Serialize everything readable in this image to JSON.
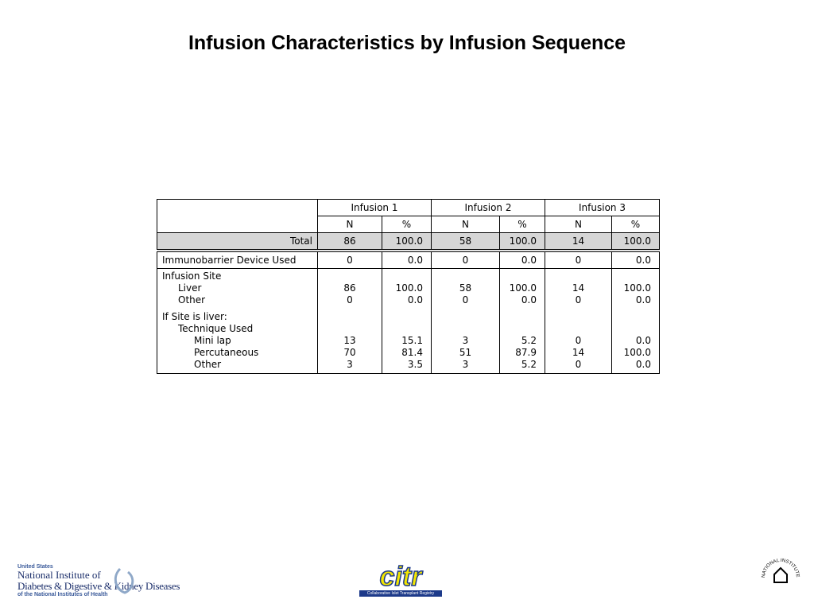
{
  "title": "Infusion Characteristics by Infusion Sequence",
  "table": {
    "groups": [
      "Infusion 1",
      "Infusion 2",
      "Infusion 3"
    ],
    "subheaders": [
      "N",
      "%",
      "N",
      "%",
      "N",
      "%"
    ],
    "rows": [
      {
        "label": "Total",
        "cells": [
          "86",
          "100.0",
          "58",
          "100.0",
          "14",
          "100.0"
        ]
      },
      {
        "label": "Immunobarrier Device Used",
        "cells": [
          "0",
          "0.0",
          "0",
          "0.0",
          "0",
          "0.0"
        ]
      },
      {
        "label": "Infusion Site"
      },
      {
        "label": "Liver",
        "cells": [
          "86",
          "100.0",
          "58",
          "100.0",
          "14",
          "100.0"
        ]
      },
      {
        "label": "Other",
        "cells": [
          "0",
          "0.0",
          "0",
          "0.0",
          "0",
          "0.0"
        ]
      },
      {
        "label": "If Site is liver:"
      },
      {
        "label": "Technique Used"
      },
      {
        "label": "Mini lap",
        "cells": [
          "13",
          "15.1",
          "3",
          "5.2",
          "0",
          "0.0"
        ]
      },
      {
        "label": "Percutaneous",
        "cells": [
          "70",
          "81.4",
          "51",
          "87.9",
          "14",
          "100.0"
        ]
      },
      {
        "label": "Other",
        "cells": [
          "3",
          "3.5",
          "3",
          "5.2",
          "0",
          "0.0"
        ]
      }
    ]
  },
  "footer": {
    "niddk": {
      "line1": "United States",
      "line2": "National Institute of",
      "line3": "Diabetes & Digestive & Kidney Diseases",
      "line4": "of the National Institutes of Health"
    },
    "citr": {
      "name": "citr",
      "subtitle": "Collaborative Islet Transplant Registry"
    },
    "nih": "NATIONAL INSTITUTES OF HEALTH"
  }
}
